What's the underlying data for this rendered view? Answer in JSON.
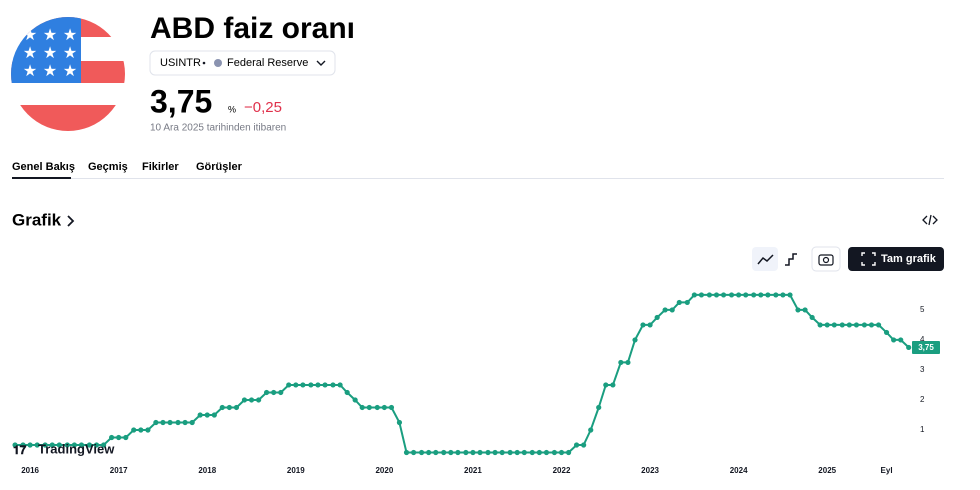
{
  "header": {
    "title": "ABD faiz oranı",
    "symbol": "USINTR",
    "source": "Federal Reserve",
    "value": "3,75",
    "unit": "%",
    "change": "−0,25",
    "date": "10 Ara 2025 tarihinden itibaren"
  },
  "tabs": [
    "Genel Bakış",
    "Geçmiş",
    "Fikirler",
    "Görüşler"
  ],
  "section": {
    "title": "Grafik",
    "button": "Tam grafik",
    "logo": "TradingView"
  },
  "chart_data": {
    "type": "line",
    "color": "#1a9e80",
    "grid": false,
    "markers": true,
    "x": [
      2015.83,
      2015.92,
      2016.0,
      2016.08,
      2016.17,
      2016.25,
      2016.33,
      2016.42,
      2016.5,
      2016.58,
      2016.67,
      2016.75,
      2016.83,
      2016.92,
      2017.0,
      2017.08,
      2017.17,
      2017.25,
      2017.33,
      2017.42,
      2017.5,
      2017.58,
      2017.67,
      2017.75,
      2017.83,
      2017.92,
      2018.0,
      2018.08,
      2018.17,
      2018.25,
      2018.33,
      2018.42,
      2018.5,
      2018.58,
      2018.67,
      2018.75,
      2018.83,
      2018.92,
      2019.0,
      2019.08,
      2019.17,
      2019.25,
      2019.33,
      2019.42,
      2019.5,
      2019.58,
      2019.67,
      2019.75,
      2019.83,
      2019.92,
      2020.0,
      2020.08,
      2020.17,
      2020.25,
      2020.33,
      2020.42,
      2020.5,
      2020.58,
      2020.67,
      2020.75,
      2020.83,
      2020.92,
      2021.0,
      2021.08,
      2021.17,
      2021.25,
      2021.33,
      2021.42,
      2021.5,
      2021.58,
      2021.67,
      2021.75,
      2021.83,
      2021.92,
      2022.0,
      2022.08,
      2022.17,
      2022.25,
      2022.33,
      2022.42,
      2022.5,
      2022.58,
      2022.67,
      2022.75,
      2022.83,
      2022.92,
      2023.0,
      2023.08,
      2023.17,
      2023.25,
      2023.33,
      2023.42,
      2023.5,
      2023.58,
      2023.67,
      2023.75,
      2023.83,
      2023.92,
      2024.0,
      2024.08,
      2024.17,
      2024.25,
      2024.33,
      2024.42,
      2024.5,
      2024.58,
      2024.67,
      2024.75,
      2024.83,
      2024.92,
      2025.0,
      2025.08,
      2025.17,
      2025.25,
      2025.33,
      2025.42,
      2025.5,
      2025.58,
      2025.67,
      2025.75,
      2025.83,
      2025.92
    ],
    "values": [
      0.5,
      0.5,
      0.5,
      0.5,
      0.5,
      0.5,
      0.5,
      0.5,
      0.5,
      0.5,
      0.5,
      0.5,
      0.5,
      0.75,
      0.75,
      0.75,
      1,
      1,
      1,
      1.25,
      1.25,
      1.25,
      1.25,
      1.25,
      1.25,
      1.5,
      1.5,
      1.5,
      1.75,
      1.75,
      1.75,
      2,
      2,
      2,
      2.25,
      2.25,
      2.25,
      2.5,
      2.5,
      2.5,
      2.5,
      2.5,
      2.5,
      2.5,
      2.5,
      2.25,
      2,
      1.75,
      1.75,
      1.75,
      1.75,
      1.75,
      1.25,
      0.25,
      0.25,
      0.25,
      0.25,
      0.25,
      0.25,
      0.25,
      0.25,
      0.25,
      0.25,
      0.25,
      0.25,
      0.25,
      0.25,
      0.25,
      0.25,
      0.25,
      0.25,
      0.25,
      0.25,
      0.25,
      0.25,
      0.25,
      0.5,
      0.5,
      1,
      1.75,
      2.5,
      2.5,
      3.25,
      3.25,
      4,
      4.5,
      4.5,
      4.75,
      5,
      5,
      5.25,
      5.25,
      5.5,
      5.5,
      5.5,
      5.5,
      5.5,
      5.5,
      5.5,
      5.5,
      5.5,
      5.5,
      5.5,
      5.5,
      5.5,
      5.5,
      5,
      5,
      4.75,
      4.5,
      4.5,
      4.5,
      4.5,
      4.5,
      4.5,
      4.5,
      4.5,
      4.5,
      4.25,
      4,
      4,
      3.75
    ],
    "xlim": [
      2015.66,
      2025.98
    ],
    "xticks": [
      2016,
      2017,
      2018,
      2019,
      2020,
      2021,
      2022,
      2023,
      2024,
      2025,
      {
        "value": 2025.67,
        "label": "Eyl"
      }
    ],
    "ylim": [
      0,
      6.33
    ],
    "yticks": [
      1,
      2,
      3,
      4,
      5
    ]
  }
}
